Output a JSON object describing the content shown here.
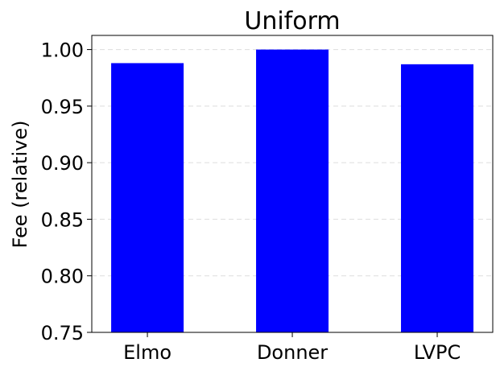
{
  "chart_data": {
    "type": "bar",
    "title": "Uniform",
    "xlabel": "",
    "ylabel": "Fee (relative)",
    "categories": [
      "Elmo",
      "Donner",
      "LVPC"
    ],
    "values": [
      0.988,
      1.0,
      0.987
    ],
    "ylim": [
      0.75,
      1.0125
    ],
    "yticks": [
      0.75,
      0.8,
      0.85,
      0.9,
      0.95,
      1.0
    ],
    "ytick_labels": [
      "0.75",
      "0.80",
      "0.85",
      "0.90",
      "0.95",
      "1.00"
    ],
    "grid": "y-dashed",
    "bar_color": "#0000ff",
    "grid_color": "#dddddd"
  }
}
